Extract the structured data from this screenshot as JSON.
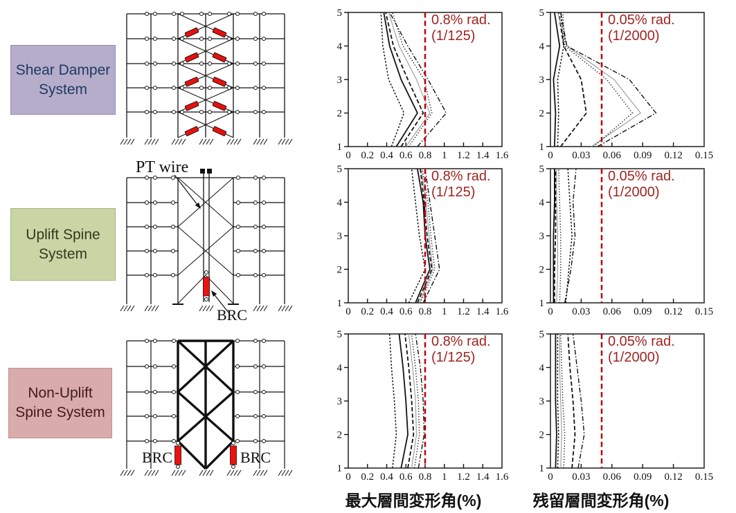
{
  "systems": [
    {
      "label": "Shear Damper System",
      "bg": "#b6adcb",
      "text_color": "#1e3a63"
    },
    {
      "label": "Uplift Spine System",
      "bg": "#c9d5a5",
      "text_color": "#2f3b1d"
    },
    {
      "label": "Non-Uplift Spine System",
      "bg": "#d9abab",
      "text_color": "#421a1c"
    }
  ],
  "diagram_labels": {
    "pt_wire": "PT wire",
    "brc": "BRC",
    "damper_color": "#e8100c",
    "brc_color": "#ee1111"
  },
  "axis_titles": {
    "max_drift": "最大層間変形角(%)",
    "residual_drift": "残留層間変形角(%)"
  },
  "threshold_style": {
    "line_color": "#c00000",
    "text_color": "#9e2420"
  },
  "chart_data": [
    {
      "id": "shear-damper-max-drift",
      "type": "line",
      "xlim": [
        0,
        1.6
      ],
      "xticks": [
        0,
        0.2,
        0.4,
        0.6,
        0.8,
        1,
        1.2,
        1.4,
        1.6
      ],
      "xtick_labels": [
        "0",
        "0.2",
        "0.4",
        "0.6",
        "0.8",
        "1",
        "1.2",
        "1.4",
        "1.6"
      ],
      "ylim": [
        1,
        5
      ],
      "yticks": [
        1,
        2,
        3,
        4,
        5
      ],
      "grid": false,
      "legend": false,
      "threshold": {
        "value": 0.8,
        "label": [
          "0.8% rad.",
          "(1/125)"
        ]
      },
      "stories": [
        1,
        2,
        3,
        4,
        5
      ],
      "series": [
        {
          "style": "short-dash",
          "values": [
            0.45,
            0.58,
            0.42,
            0.36,
            0.34
          ]
        },
        {
          "style": "solid",
          "values": [
            0.5,
            0.72,
            0.55,
            0.43,
            0.37
          ]
        },
        {
          "style": "dash",
          "values": [
            0.55,
            0.78,
            0.62,
            0.47,
            0.39
          ]
        },
        {
          "style": "gray",
          "values": [
            0.6,
            0.85,
            0.71,
            0.53,
            0.42
          ]
        },
        {
          "style": "dot",
          "values": [
            0.63,
            0.87,
            0.79,
            0.57,
            0.46
          ]
        },
        {
          "style": "dash-dot",
          "values": [
            0.72,
            1.02,
            0.83,
            0.62,
            0.43
          ]
        }
      ]
    },
    {
      "id": "shear-damper-residual-drift",
      "type": "line",
      "xlim": [
        0,
        0.15
      ],
      "xticks": [
        0,
        0.03,
        0.06,
        0.09,
        0.12,
        0.15
      ],
      "xtick_labels": [
        "0",
        "0.03",
        "0.06",
        "0.09",
        "0.12",
        "0.15"
      ],
      "ylim": [
        1,
        5
      ],
      "yticks": [
        1,
        2,
        3,
        4,
        5
      ],
      "grid": false,
      "legend": false,
      "threshold": {
        "value": 0.05,
        "label": [
          "0.05% rad.",
          "(1/2000)"
        ]
      },
      "stories": [
        1,
        2,
        3,
        4,
        5
      ],
      "series": [
        {
          "style": "solid",
          "values": [
            0.004,
            0.005,
            0.003,
            0.009,
            0.004
          ]
        },
        {
          "style": "short-dash",
          "values": [
            0.007,
            0.008,
            0.007,
            0.013,
            0.01
          ]
        },
        {
          "style": "dash",
          "values": [
            0.01,
            0.035,
            0.03,
            0.013,
            0.008
          ]
        },
        {
          "style": "gray",
          "values": [
            0.04,
            0.088,
            0.062,
            0.016,
            0.007
          ]
        },
        {
          "style": "dot",
          "values": [
            0.042,
            0.08,
            0.055,
            0.014,
            0.012
          ]
        },
        {
          "style": "dash-dot",
          "values": [
            0.046,
            0.103,
            0.077,
            0.016,
            0.01
          ]
        }
      ]
    },
    {
      "id": "uplift-spine-max-drift",
      "type": "line",
      "xlim": [
        0,
        1.6
      ],
      "xticks": [
        0,
        0.2,
        0.4,
        0.6,
        0.8,
        1,
        1.2,
        1.4,
        1.6
      ],
      "xtick_labels": [
        "0",
        "0.2",
        "0.4",
        "0.6",
        "0.8",
        "1",
        "1.2",
        "1.4",
        "1.6"
      ],
      "ylim": [
        1,
        5
      ],
      "yticks": [
        1,
        2,
        3,
        4,
        5
      ],
      "grid": false,
      "legend": false,
      "threshold": {
        "value": 0.8,
        "label": [
          "0.8% rad.",
          "(1/125)"
        ]
      },
      "stories": [
        1,
        2,
        3,
        4,
        5
      ],
      "series": [
        {
          "style": "short-dash",
          "values": [
            0.63,
            0.8,
            0.74,
            0.7,
            0.66
          ]
        },
        {
          "style": "solid",
          "values": [
            0.7,
            0.85,
            0.8,
            0.78,
            0.72
          ]
        },
        {
          "style": "dash",
          "values": [
            0.72,
            0.87,
            0.82,
            0.79,
            0.75
          ]
        },
        {
          "style": "gray",
          "values": [
            0.74,
            0.88,
            0.84,
            0.81,
            0.76
          ]
        },
        {
          "style": "dot",
          "values": [
            0.75,
            0.9,
            0.86,
            0.83,
            0.77
          ]
        },
        {
          "style": "dash-dot",
          "values": [
            0.78,
            0.95,
            0.9,
            0.85,
            0.8
          ]
        }
      ]
    },
    {
      "id": "uplift-spine-residual-drift",
      "type": "line",
      "xlim": [
        0,
        0.15
      ],
      "xticks": [
        0,
        0.03,
        0.06,
        0.09,
        0.12,
        0.15
      ],
      "xtick_labels": [
        "0",
        "0.03",
        "0.06",
        "0.09",
        "0.12",
        "0.15"
      ],
      "ylim": [
        1,
        5
      ],
      "yticks": [
        1,
        2,
        3,
        4,
        5
      ],
      "grid": false,
      "legend": false,
      "threshold": {
        "value": 0.05,
        "label": [
          "0.05% rad.",
          "(1/2000)"
        ]
      },
      "stories": [
        1,
        2,
        3,
        4,
        5
      ],
      "series": [
        {
          "style": "solid",
          "values": [
            0.003,
            0.003,
            0.003,
            0.004,
            0.004
          ]
        },
        {
          "style": "dash",
          "values": [
            0.004,
            0.004,
            0.005,
            0.005,
            0.005
          ]
        },
        {
          "style": "gray",
          "values": [
            0.006,
            0.007,
            0.007,
            0.006,
            0.006
          ]
        },
        {
          "style": "dot",
          "values": [
            0.009,
            0.01,
            0.01,
            0.009,
            0.008
          ]
        },
        {
          "style": "short-dash",
          "values": [
            0.015,
            0.018,
            0.021,
            0.019,
            0.017
          ]
        },
        {
          "style": "dash-dot",
          "values": [
            0.014,
            0.02,
            0.024,
            0.022,
            0.025
          ]
        }
      ]
    },
    {
      "id": "non-uplift-spine-max-drift",
      "type": "line",
      "xlim": [
        0,
        1.6
      ],
      "xticks": [
        0,
        0.2,
        0.4,
        0.6,
        0.8,
        1,
        1.2,
        1.4,
        1.6
      ],
      "xtick_labels": [
        "0",
        "0.2",
        "0.4",
        "0.6",
        "0.8",
        "1",
        "1.2",
        "1.4",
        "1.6"
      ],
      "ylim": [
        1,
        5
      ],
      "yticks": [
        1,
        2,
        3,
        4,
        5
      ],
      "grid": false,
      "legend": false,
      "threshold": {
        "value": 0.8,
        "label": [
          "0.8% rad.",
          "(1/125)"
        ]
      },
      "stories": [
        1,
        2,
        3,
        4,
        5
      ],
      "series": [
        {
          "style": "short-dash",
          "values": [
            0.46,
            0.5,
            0.48,
            0.45,
            0.43
          ]
        },
        {
          "style": "solid",
          "values": [
            0.55,
            0.62,
            0.6,
            0.57,
            0.53
          ]
        },
        {
          "style": "dash",
          "values": [
            0.62,
            0.68,
            0.66,
            0.63,
            0.59
          ]
        },
        {
          "style": "gray",
          "values": [
            0.66,
            0.71,
            0.7,
            0.67,
            0.63
          ]
        },
        {
          "style": "dot",
          "values": [
            0.69,
            0.74,
            0.73,
            0.7,
            0.66
          ]
        },
        {
          "style": "dash-dot",
          "values": [
            0.73,
            0.79,
            0.78,
            0.75,
            0.7
          ]
        }
      ]
    },
    {
      "id": "non-uplift-spine-residual-drift",
      "type": "line",
      "xlim": [
        0,
        0.15
      ],
      "xticks": [
        0,
        0.03,
        0.06,
        0.09,
        0.12,
        0.15
      ],
      "xtick_labels": [
        "0",
        "0.03",
        "0.06",
        "0.09",
        "0.12",
        "0.15"
      ],
      "ylim": [
        1,
        5
      ],
      "yticks": [
        1,
        2,
        3,
        4,
        5
      ],
      "grid": false,
      "legend": false,
      "threshold": {
        "value": 0.05,
        "label": [
          "0.05% rad.",
          "(1/2000)"
        ]
      },
      "stories": [
        1,
        2,
        3,
        4,
        5
      ],
      "series": [
        {
          "style": "solid",
          "values": [
            0.005,
            0.006,
            0.005,
            0.005,
            0.005
          ]
        },
        {
          "style": "short-dash",
          "values": [
            0.007,
            0.008,
            0.007,
            0.007,
            0.007
          ]
        },
        {
          "style": "gray",
          "values": [
            0.01,
            0.011,
            0.01,
            0.009,
            0.009
          ]
        },
        {
          "style": "dot",
          "values": [
            0.013,
            0.014,
            0.012,
            0.011,
            0.01
          ]
        },
        {
          "style": "dash",
          "values": [
            0.021,
            0.024,
            0.022,
            0.019,
            0.017
          ]
        },
        {
          "style": "dash-dot",
          "values": [
            0.027,
            0.033,
            0.03,
            0.026,
            0.022
          ]
        }
      ]
    }
  ]
}
